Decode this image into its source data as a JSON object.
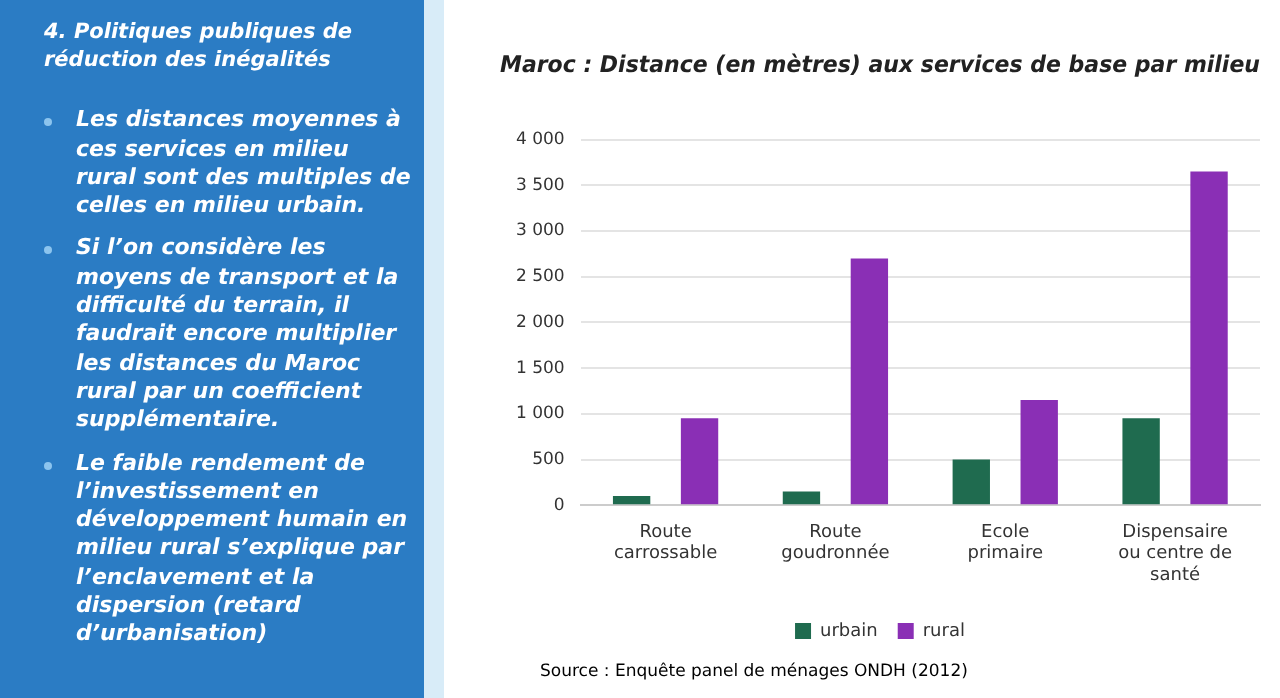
{
  "chart_data": {
    "type": "bar",
    "title": "Maroc : Distance (en mètres) aux services de base par milieu",
    "categories": [
      "Route carrossable",
      "Route goudronnée",
      "Ecole primaire",
      "Dispensaire ou centre de santé"
    ],
    "series": [
      {
        "name": "urbain",
        "color": "#1f6b4f",
        "values": [
          100,
          150,
          500,
          950
        ]
      },
      {
        "name": "rural",
        "color": "#8a2fb5",
        "values": [
          950,
          2700,
          1150,
          3650
        ]
      }
    ],
    "ylim": [
      0,
      4000
    ],
    "yticks": [
      {
        "value": 0,
        "label": "0"
      },
      {
        "value": 500,
        "label": "500"
      },
      {
        "value": 1000,
        "label": "1 000"
      },
      {
        "value": 1500,
        "label": "1 500"
      },
      {
        "value": 2000,
        "label": "2 000"
      },
      {
        "value": 2500,
        "label": "2 500"
      },
      {
        "value": 3000,
        "label": "3 000"
      },
      {
        "value": 3500,
        "label": "3 500"
      },
      {
        "value": 4000,
        "label": "4 000"
      }
    ],
    "grid": "y",
    "legend": "bottom",
    "annotations": [
      "4. Politiques publiques de réduction des inégalités",
      "Les distances moyennes  à ces services en milieu rural sont des multiples de celles en milieu urbain.",
      "Si l’on considère les moyens de transport et la difficulté du terrain, il faudrait encore multiplier les distances du Maroc rural par un coefficient supplémentaire.",
      "Le faible rendement de l’investissement en développement humain en milieu rural s’explique par l’enclavement et la dispersion (retard d’urbanisation)",
      "Source : Enquête panel de ménages ONDH (2012)"
    ]
  }
}
